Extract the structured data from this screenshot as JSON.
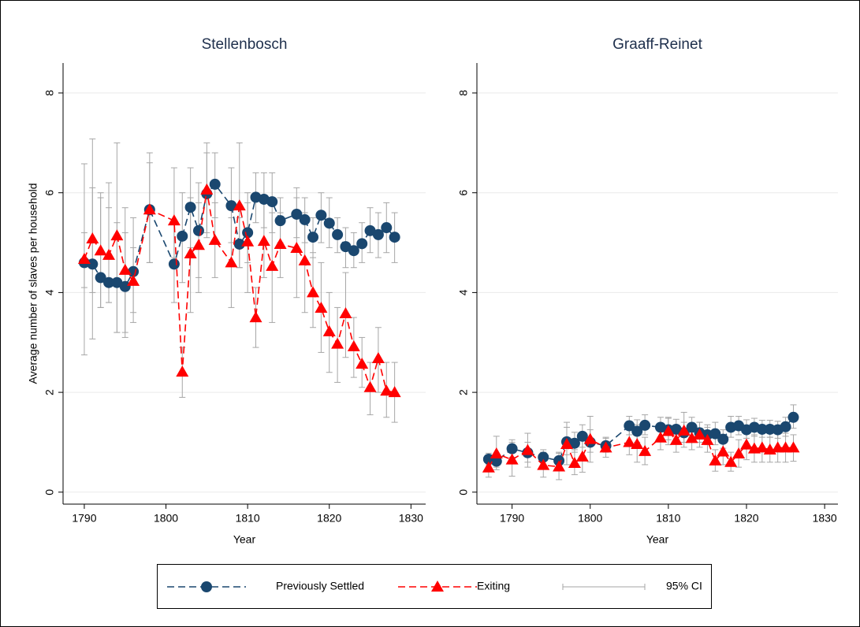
{
  "chart_data": [
    {
      "type": "line",
      "title": "Stellenbosch",
      "xlabel": "Year",
      "ylabel": "Average number of slaves per household",
      "xlim": [
        1787.4,
        1831.8
      ],
      "ylim": [
        -0.24,
        8.6
      ],
      "xticks": [
        1790,
        1800,
        1810,
        1820,
        1830
      ],
      "yticks": [
        0,
        2,
        4,
        6,
        8
      ],
      "grid": true,
      "x": [
        1790,
        1791,
        1792,
        1793,
        1794,
        1795,
        1796,
        1798,
        1801,
        1802,
        1803,
        1804,
        1805,
        1806,
        1808,
        1809,
        1810,
        1811,
        1812,
        1813,
        1814,
        1816,
        1817,
        1818,
        1819,
        1820,
        1821,
        1822,
        1823,
        1824,
        1825,
        1826,
        1827,
        1828
      ],
      "series": [
        {
          "name": "Previously Settled",
          "color": "#1a476f",
          "marker": "circle",
          "values": [
            4.6,
            4.57,
            4.3,
            4.2,
            4.2,
            4.12,
            4.42,
            5.66,
            4.57,
            5.13,
            5.71,
            5.24,
            5.98,
            6.17,
            5.74,
            4.97,
            5.2,
            5.91,
            5.87,
            5.82,
            5.44,
            5.57,
            5.46,
            5.11,
            5.55,
            5.39,
            5.16,
            4.92,
            4.84,
            4.98,
            5.24,
            5.16,
            5.3,
            5.11
          ],
          "ci_low": [
            2.75,
            3.07,
            3.7,
            3.8,
            3.2,
            3.1,
            3.4,
            4.6,
            3.8,
            4.2,
            4.9,
            4.3,
            5.2,
            5.5,
            5.0,
            4.5,
            4.6,
            5.4,
            5.3,
            5.2,
            5.0,
            5.1,
            5.0,
            4.7,
            5.0,
            4.9,
            4.8,
            4.5,
            4.5,
            4.6,
            4.8,
            4.7,
            4.8,
            4.6
          ],
          "ci_high": [
            6.58,
            7.08,
            6.0,
            6.2,
            5.4,
            5.2,
            5.5,
            6.8,
            5.4,
            6.0,
            6.5,
            6.2,
            6.8,
            6.8,
            6.5,
            5.5,
            5.8,
            6.4,
            6.4,
            6.4,
            5.9,
            6.1,
            5.9,
            5.5,
            6.0,
            5.9,
            5.5,
            5.3,
            5.2,
            5.4,
            5.7,
            5.6,
            5.8,
            5.6
          ]
        },
        {
          "name": "Exiting",
          "color": "#ff0000",
          "marker": "triangle",
          "values": [
            4.67,
            5.08,
            4.84,
            4.75,
            5.14,
            4.45,
            4.23,
            5.66,
            5.44,
            2.41,
            4.78,
            4.95,
            6.06,
            5.05,
            4.6,
            5.74,
            5.02,
            3.5,
            5.03,
            4.53,
            4.97,
            4.89,
            4.64,
            4.0,
            3.69,
            3.22,
            2.97,
            3.58,
            2.92,
            2.57,
            2.1,
            2.68,
            2.03,
            2.0
          ],
          "ci_low": [
            4.1,
            4.0,
            3.7,
            3.8,
            3.2,
            3.2,
            3.6,
            4.6,
            4.7,
            1.9,
            3.6,
            4.0,
            5.1,
            4.3,
            3.7,
            4.5,
            4.0,
            2.9,
            4.3,
            3.4,
            4.3,
            3.9,
            3.6,
            3.3,
            2.8,
            2.4,
            2.2,
            2.7,
            2.3,
            2.1,
            1.55,
            2.0,
            1.5,
            1.4
          ],
          "ci_high": [
            5.2,
            6.1,
            5.9,
            5.7,
            7.0,
            5.7,
            4.9,
            6.6,
            6.5,
            2.9,
            5.9,
            5.8,
            7.0,
            5.8,
            5.5,
            7.0,
            6.0,
            4.1,
            5.8,
            5.6,
            5.6,
            5.9,
            5.6,
            4.8,
            4.6,
            4.0,
            3.7,
            4.4,
            3.5,
            3.1,
            2.6,
            3.3,
            2.6,
            2.6
          ]
        }
      ]
    },
    {
      "type": "line",
      "title": "Graaff-Reinet",
      "xlabel": "Year",
      "xlim": [
        1785.5,
        1831.7
      ],
      "ylim": [
        -0.24,
        8.6
      ],
      "xticks": [
        1790,
        1800,
        1810,
        1820,
        1830
      ],
      "yticks": [
        0,
        2,
        4,
        6,
        8
      ],
      "grid": true,
      "x": [
        1787,
        1788,
        1790,
        1792,
        1794,
        1796,
        1797,
        1798,
        1799,
        1800,
        1802,
        1805,
        1806,
        1807,
        1809,
        1810,
        1811,
        1812,
        1813,
        1814,
        1815,
        1816,
        1817,
        1818,
        1819,
        1820,
        1821,
        1822,
        1823,
        1824,
        1825,
        1826
      ],
      "series": [
        {
          "color": "#1a476f",
          "marker": "circle",
          "values": [
            0.66,
            0.62,
            0.87,
            0.79,
            0.7,
            0.63,
            1.01,
            0.98,
            1.12,
            1.0,
            0.93,
            1.33,
            1.22,
            1.34,
            1.3,
            1.25,
            1.26,
            1.19,
            1.3,
            1.19,
            1.15,
            1.17,
            1.06,
            1.3,
            1.33,
            1.25,
            1.3,
            1.26,
            1.26,
            1.25,
            1.31,
            1.5
          ],
          "ci_low": [
            0.55,
            0.5,
            0.7,
            0.6,
            0.55,
            0.5,
            0.75,
            0.8,
            0.9,
            0.8,
            0.8,
            1.15,
            1.0,
            1.15,
            1.1,
            1.05,
            1.07,
            1.0,
            1.1,
            1.0,
            0.95,
            0.95,
            0.88,
            1.1,
            1.15,
            1.08,
            1.12,
            1.1,
            1.1,
            1.08,
            1.12,
            1.28
          ],
          "ci_high": [
            0.78,
            0.75,
            1.05,
            1.0,
            0.85,
            0.78,
            1.3,
            1.2,
            1.35,
            1.25,
            1.08,
            1.52,
            1.45,
            1.55,
            1.5,
            1.48,
            1.46,
            1.4,
            1.5,
            1.4,
            1.35,
            1.4,
            1.25,
            1.52,
            1.52,
            1.45,
            1.48,
            1.44,
            1.44,
            1.42,
            1.5,
            1.75
          ]
        },
        {
          "color": "#ff0000",
          "marker": "triangle",
          "values": [
            0.49,
            0.77,
            0.65,
            0.84,
            0.54,
            0.51,
            0.96,
            0.58,
            0.71,
            1.06,
            0.89,
            1.0,
            0.96,
            0.82,
            1.09,
            1.22,
            1.04,
            1.23,
            1.08,
            1.15,
            1.04,
            0.63,
            0.81,
            0.6,
            0.77,
            0.95,
            0.87,
            0.89,
            0.85,
            0.89,
            0.89,
            0.89
          ],
          "ci_low": [
            0.3,
            0.45,
            0.32,
            0.5,
            0.3,
            0.25,
            0.55,
            0.35,
            0.4,
            0.6,
            0.7,
            0.75,
            0.6,
            0.55,
            0.85,
            0.95,
            0.8,
            0.9,
            0.85,
            0.9,
            0.8,
            0.42,
            0.55,
            0.42,
            0.5,
            0.65,
            0.6,
            0.6,
            0.6,
            0.6,
            0.6,
            0.62
          ],
          "ci_high": [
            0.7,
            1.12,
            1.0,
            1.18,
            0.8,
            0.8,
            1.4,
            0.85,
            1.05,
            1.52,
            1.1,
            1.25,
            1.35,
            1.1,
            1.35,
            1.5,
            1.3,
            1.6,
            1.3,
            1.4,
            1.3,
            0.85,
            1.05,
            0.8,
            1.05,
            1.25,
            1.15,
            1.18,
            1.1,
            1.18,
            1.18,
            1.15
          ]
        }
      ]
    }
  ],
  "legend": {
    "ci_label": "95% CI",
    "ci_color": "#a6a6a6",
    "position": "bottom"
  }
}
